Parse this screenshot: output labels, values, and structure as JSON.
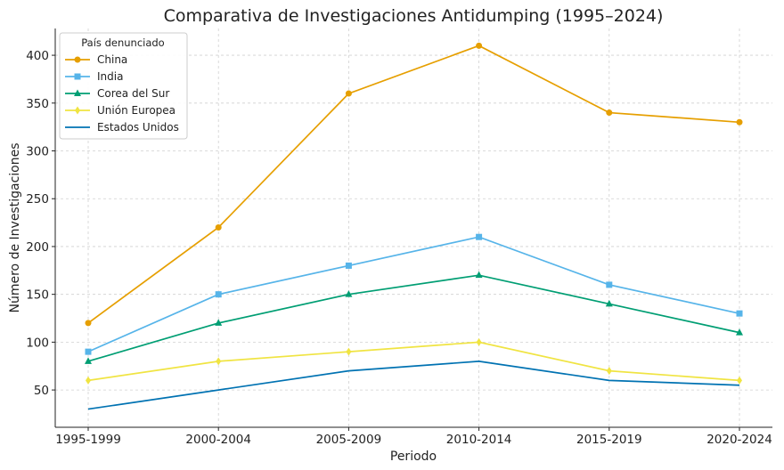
{
  "chart_data": {
    "type": "line",
    "title": "Comparativa de Investigaciones Antidumping (1995–2024)",
    "xlabel": "Periodo",
    "ylabel": "Número de Investigaciones",
    "categories": [
      "1995-1999",
      "2000-2004",
      "2005-2009",
      "2010-2014",
      "2015-2019",
      "2020-2024"
    ],
    "ylim": [
      11,
      428
    ],
    "yticks": [
      50,
      100,
      150,
      200,
      250,
      300,
      350,
      400
    ],
    "grid": true,
    "legend": {
      "title": "País denunciado",
      "placement": "top-left"
    },
    "series": [
      {
        "name": "China",
        "values": [
          120,
          220,
          360,
          410,
          340,
          330
        ],
        "color": "#E69F00",
        "marker": "circle"
      },
      {
        "name": "India",
        "values": [
          90,
          150,
          180,
          210,
          160,
          130
        ],
        "color": "#56B4E9",
        "marker": "square"
      },
      {
        "name": "Corea del Sur",
        "values": [
          80,
          120,
          150,
          170,
          140,
          110
        ],
        "color": "#009E73",
        "marker": "triangle"
      },
      {
        "name": "Unión Europea",
        "values": [
          60,
          80,
          90,
          100,
          70,
          60
        ],
        "color": "#F0E442",
        "marker": "diamond"
      },
      {
        "name": "Estados Unidos",
        "values": [
          30,
          50,
          70,
          80,
          60,
          55
        ],
        "color": "#0072B2",
        "marker": "none"
      }
    ]
  }
}
